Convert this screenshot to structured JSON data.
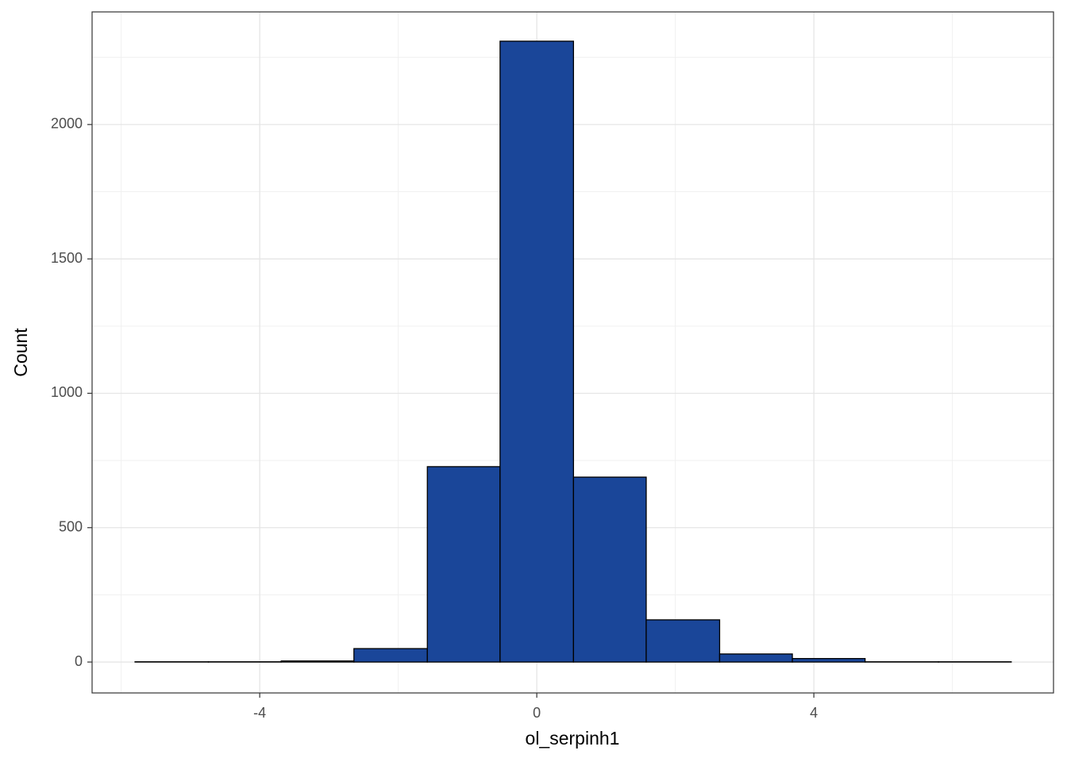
{
  "chart_data": {
    "type": "histogram",
    "x_label": "ol_serpinh1",
    "y_label": "Count",
    "bins": [
      -5.8,
      -4.74,
      -3.69,
      -2.64,
      -1.58,
      -0.53,
      0.53,
      1.58,
      2.64,
      3.69,
      4.74,
      5.8,
      6.85
    ],
    "counts": [
      1,
      1,
      4,
      50,
      727,
      2310,
      688,
      157,
      30,
      13,
      1,
      1
    ],
    "color": "#1a4699",
    "edgecolor": "#000000",
    "xlim": [
      -6.42,
      7.46
    ],
    "ylim": [
      -115,
      2419
    ],
    "xticks": [
      -4,
      0,
      4
    ],
    "yticks": [
      0,
      500,
      1000,
      1500,
      2000
    ],
    "xminor": [
      -6,
      -2,
      2,
      6
    ],
    "yminor": [
      250,
      750,
      1250,
      1750,
      2250
    ],
    "grid": true
  }
}
